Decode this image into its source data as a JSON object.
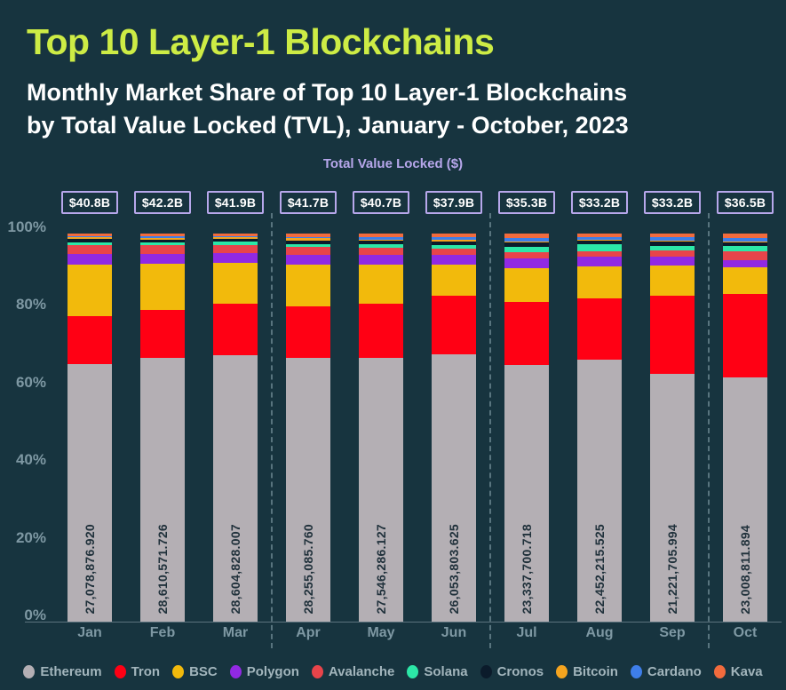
{
  "header": {
    "title": "Top 10 Layer-1 Blockchains",
    "subtitle_line1": "Monthly Market Share of Top 10 Layer-1 Blockchains",
    "subtitle_line2": "by Total Value Locked (TVL), January - October, 2023"
  },
  "colors": {
    "background": "#17343F",
    "title": "#CDEC45",
    "subtitle": "#FFFFFF",
    "axis_title": "#B7A7EB",
    "badge_border": "#B7A7EB",
    "badge_text": "#FFFFFF",
    "tick_text": "#7E98A3",
    "legend_text": "#A2B5BC",
    "bar_value_text": "#20313B"
  },
  "chart_data": {
    "type": "bar",
    "stacked": true,
    "normalized_to_percent": true,
    "axis_title": "Total Value Locked ($)",
    "categories": [
      "Jan",
      "Feb",
      "Mar",
      "Apr",
      "May",
      "Jun",
      "Jul",
      "Aug",
      "Sep",
      "Oct"
    ],
    "tvl_badges": [
      "$40.8B",
      "$42.2B",
      "$41.9B",
      "$41.7B",
      "$40.7B",
      "$37.9B",
      "$35.3B",
      "$33.2B",
      "$33.2B",
      "$36.5B"
    ],
    "ethereum_bar_labels": [
      "27,078,876.920",
      "28,610,571.726",
      "28,604,828.007",
      "28,255,085.760",
      "27,546,286.127",
      "26,053,803.625",
      "23,337,700.718",
      "22,452,215.525",
      "21,221,705.994",
      "23,008,811.894"
    ],
    "y_ticks": [
      {
        "label": "100%",
        "value": 100
      },
      {
        "label": "80%",
        "value": 80
      },
      {
        "label": "60%",
        "value": 60
      },
      {
        "label": "40%",
        "value": 40
      },
      {
        "label": "20%",
        "value": 20
      },
      {
        "label": "0%",
        "value": 0
      }
    ],
    "ylim": [
      0,
      100
    ],
    "grid": false,
    "legend_position": "bottom",
    "quarter_separators_after": [
      "Mar",
      "Jun",
      "Sep"
    ],
    "series": [
      {
        "name": "Ethereum",
        "color": "#B4AFB4",
        "values": [
          66.4,
          67.8,
          68.3,
          67.8,
          67.7,
          68.7,
          66.1,
          67.6,
          63.9,
          63.0
        ]
      },
      {
        "name": "Tron",
        "color": "#FF0014",
        "values": [
          12.3,
          12.3,
          13.2,
          13.4,
          14.0,
          15.3,
          16.3,
          15.7,
          20.1,
          21.4
        ]
      },
      {
        "name": "BSC",
        "color": "#F2BA0C",
        "values": [
          13.3,
          12.0,
          10.5,
          10.8,
          10.1,
          8.0,
          8.7,
          8.2,
          7.8,
          6.8
        ]
      },
      {
        "name": "Polygon",
        "color": "#9129E3",
        "values": [
          2.6,
          2.5,
          2.5,
          2.5,
          2.4,
          2.4,
          2.4,
          2.5,
          2.3,
          2.0
        ]
      },
      {
        "name": "Avalanche",
        "color": "#E8444A",
        "values": [
          2.3,
          2.2,
          2.2,
          2.0,
          1.9,
          1.6,
          1.7,
          1.5,
          1.5,
          2.3
        ]
      },
      {
        "name": "Solana",
        "color": "#2CE7A7",
        "values": [
          0.8,
          0.8,
          0.8,
          0.7,
          0.8,
          1.0,
          1.4,
          1.7,
          1.3,
          1.3
        ]
      },
      {
        "name": "Cronos",
        "color": "#0B1B2B",
        "values": [
          0.9,
          0.7,
          0.7,
          1.0,
          0.9,
          0.9,
          1.1,
          1.0,
          1.0,
          1.0
        ]
      },
      {
        "name": "Bitcoin",
        "color": "#F5A41F",
        "values": [
          0.5,
          0.4,
          0.4,
          0.5,
          0.4,
          0.4,
          0.3,
          0.3,
          0.3,
          0.2
        ]
      },
      {
        "name": "Cardano",
        "color": "#3E7EE9",
        "values": [
          0.2,
          0.4,
          0.3,
          0.4,
          0.6,
          0.7,
          0.9,
          0.6,
          0.8,
          0.9
        ]
      },
      {
        "name": "Kava",
        "color": "#F26B3D",
        "values": [
          0.6,
          0.7,
          0.7,
          0.8,
          0.9,
          0.9,
          1.1,
          0.9,
          1.0,
          1.1
        ]
      }
    ]
  }
}
